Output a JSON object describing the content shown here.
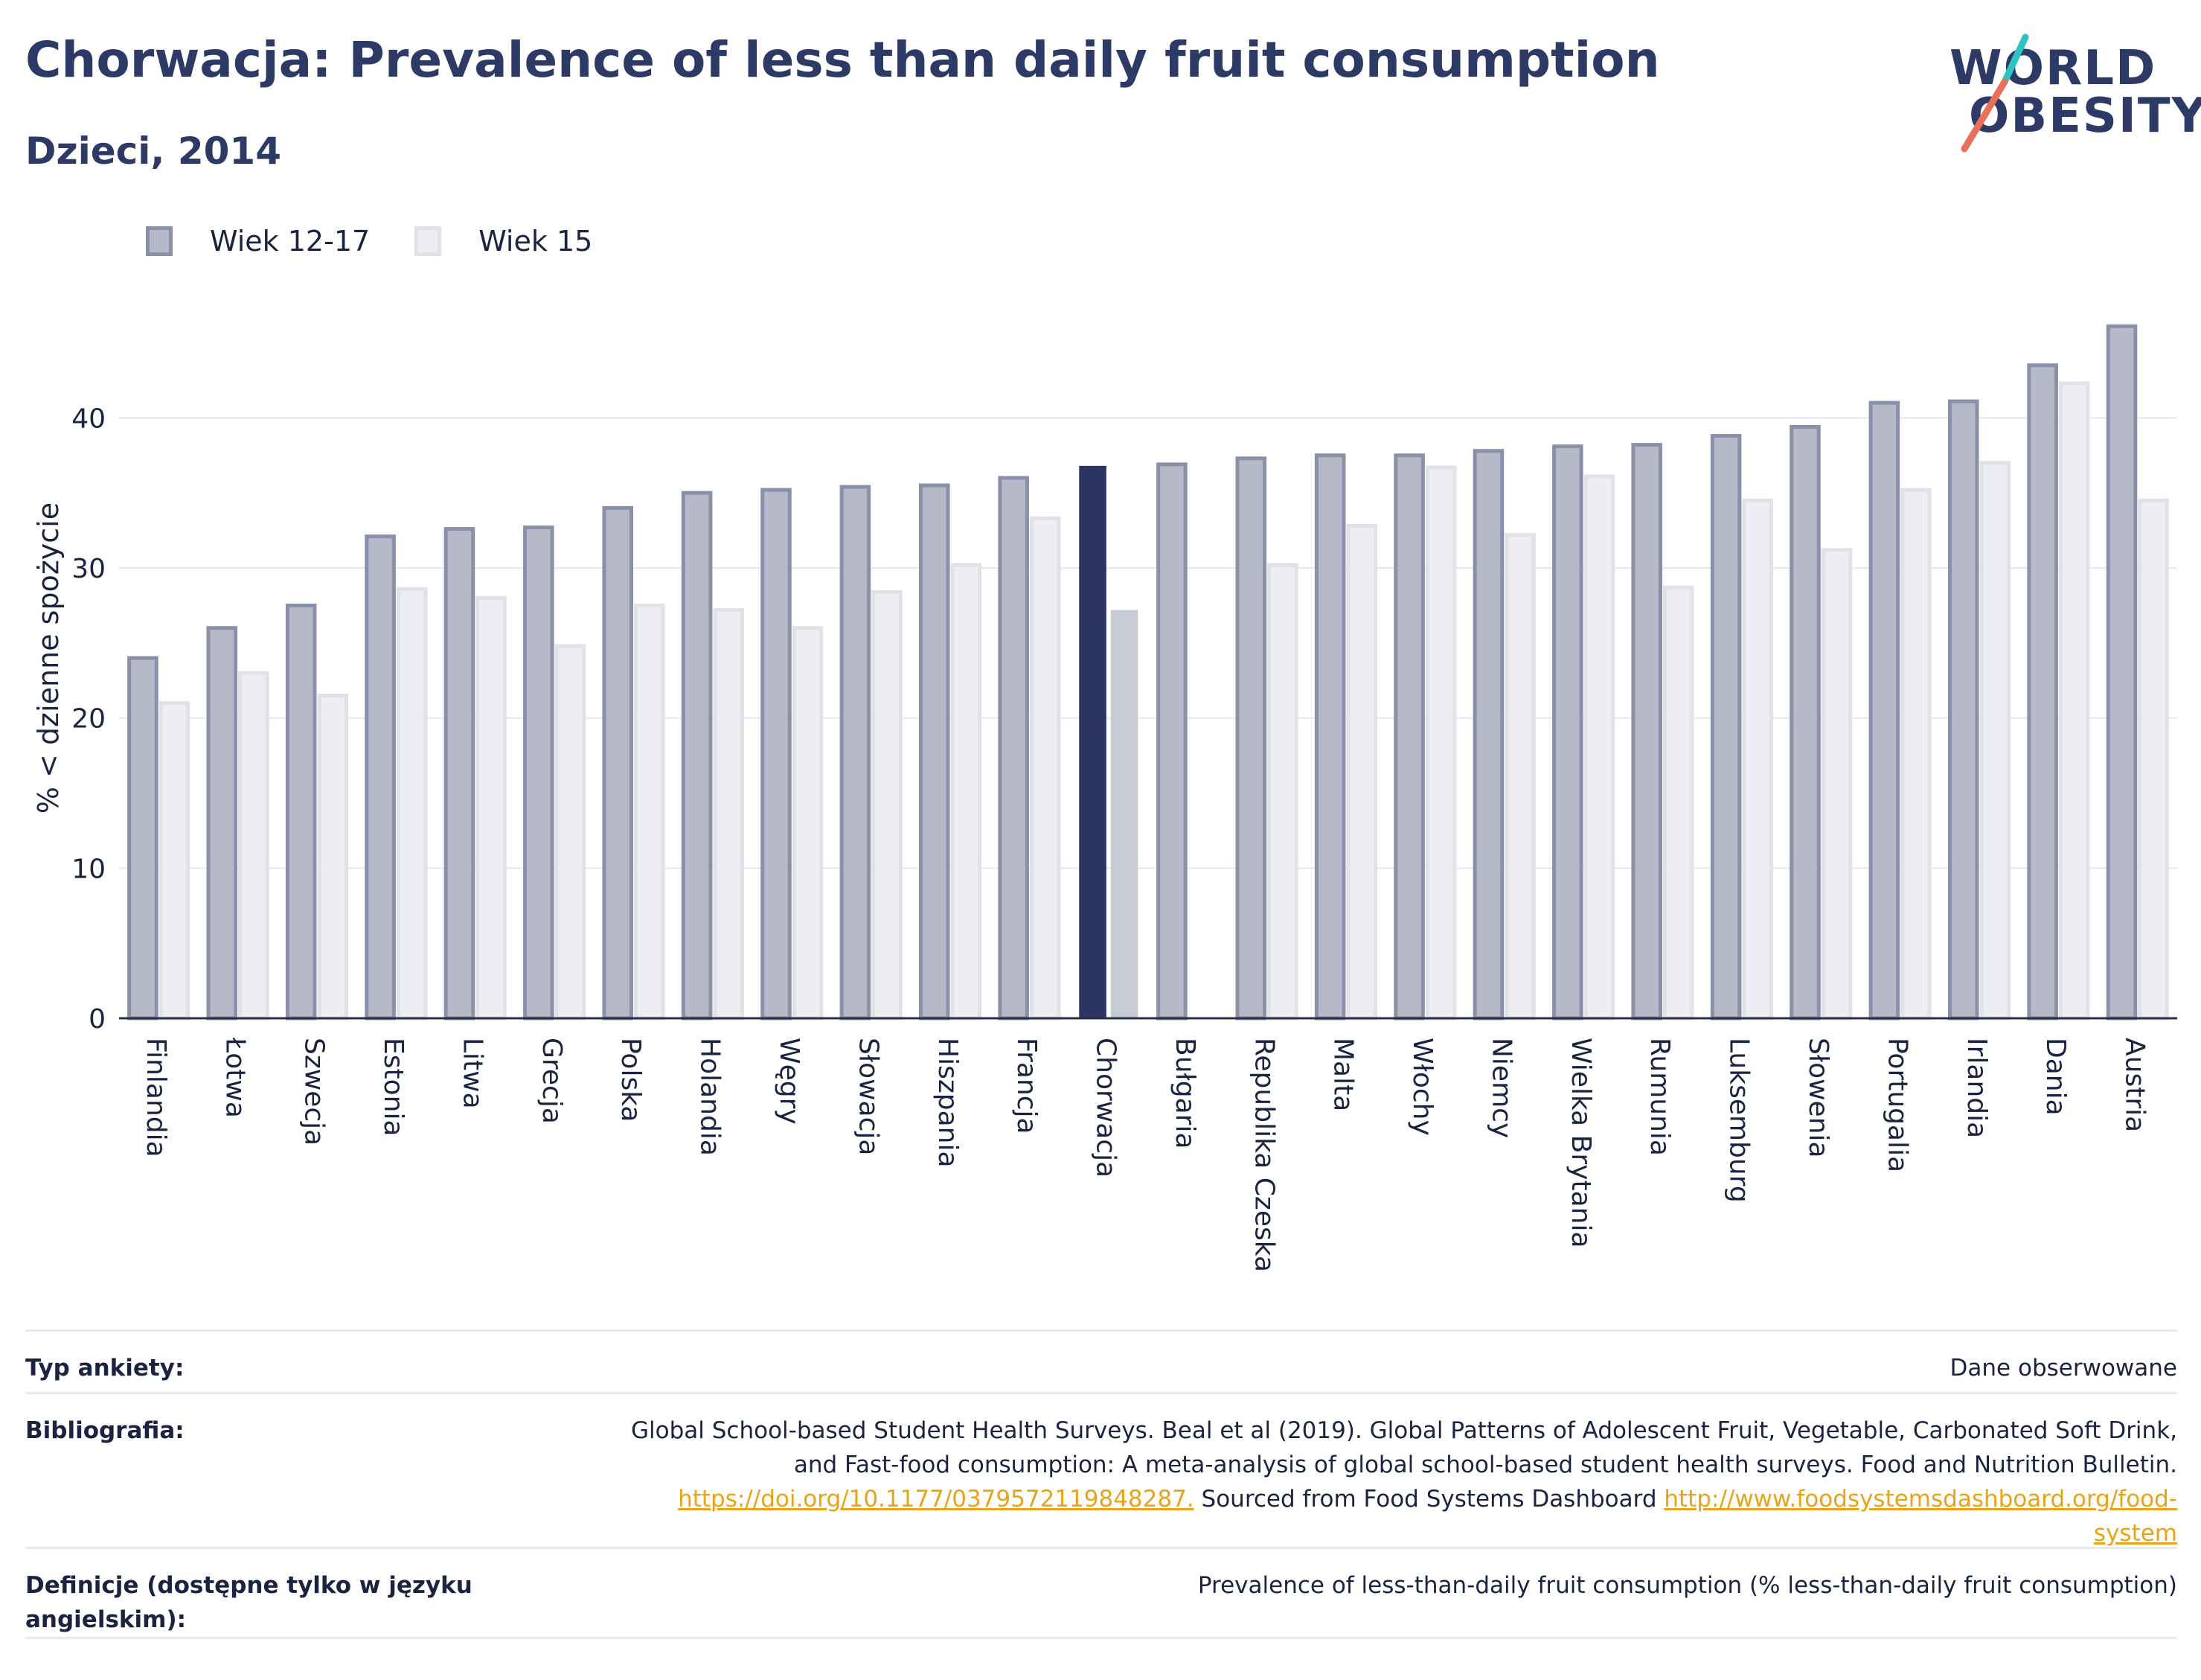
{
  "header": {
    "title": "Chorwacja: Prevalence of less than daily fruit consumption",
    "subtitle": "Dzieci, 2014"
  },
  "logo": {
    "line1": "WORLD",
    "line2": "OBESITY"
  },
  "legend": {
    "series_a": "Wiek 12-17",
    "series_b": "Wiek 15"
  },
  "colors": {
    "series_a_fill": "#b6bac8",
    "series_a_stroke": "#8a90a8",
    "series_b_fill": "#eceef2",
    "series_b_stroke": "#e0e2e8",
    "highlight_a": "#2b3562",
    "highlight_b": "#c8cad6",
    "grid": "#e6e8f0",
    "axis": "#2b3040",
    "logo_teal": "#2ec4c4",
    "logo_coral": "#e8705a"
  },
  "chart_data": {
    "type": "bar",
    "ylabel": "% < dzienne spożycie",
    "ylim": [
      0,
      48
    ],
    "yticks": [
      0,
      10,
      20,
      30,
      40
    ],
    "grid": true,
    "legend_position": "top-left",
    "highlight": "Chorwacja",
    "categories": [
      "Finlandia",
      "Łotwa",
      "Szwecja",
      "Estonia",
      "Litwa",
      "Grecja",
      "Polska",
      "Holandia",
      "Węgry",
      "Słowacja",
      "Hiszpania",
      "Francja",
      "Chorwacja",
      "Bułgaria",
      "Republika Czeska",
      "Malta",
      "Włochy",
      "Niemcy",
      "Wielka Brytania",
      "Rumunia",
      "Luksemburg",
      "Słowenia",
      "Portugalia",
      "Irlandia",
      "Dania",
      "Austria"
    ],
    "series": [
      {
        "name": "Wiek 12-17",
        "values": [
          24.0,
          26.0,
          27.5,
          32.1,
          32.6,
          32.7,
          34.0,
          35.0,
          35.2,
          35.4,
          35.5,
          36.0,
          36.8,
          36.9,
          37.3,
          37.5,
          37.5,
          37.8,
          38.1,
          38.2,
          38.8,
          39.4,
          41.0,
          41.1,
          43.5,
          46.1
        ]
      },
      {
        "name": "Wiek 15",
        "values": [
          21.0,
          23.0,
          21.5,
          28.6,
          28.0,
          24.8,
          27.5,
          27.2,
          26.0,
          28.4,
          30.2,
          33.3,
          27.2,
          0,
          30.2,
          32.8,
          36.7,
          32.2,
          36.1,
          28.7,
          34.5,
          31.2,
          35.2,
          37.0,
          42.3,
          34.5
        ]
      }
    ]
  },
  "info": {
    "survey_type_label": "Typ ankiety:",
    "survey_type_value": "Dane obserwowane",
    "bibliography_label": "Bibliografia:",
    "bibliography_line1": "Global School-based Student Health Surveys. Beal et al (2019). Global Patterns of Adolescent Fruit, Vegetable, Carbonated Soft Drink,",
    "bibliography_line2": "and Fast-food consumption: A meta-analysis of global school-based student health surveys. Food and Nutrition Bulletin.",
    "bibliography_link1": "https://doi.org/10.1177/0379572119848287.",
    "bibliography_mid": " Sourced from Food Systems Dashboard ",
    "bibliography_link2a": "http://www.foodsystemsdashboard.org/food-",
    "bibliography_link2b": "system",
    "definitions_label": "Definicje (dostępne tylko w języku angielskim):",
    "definitions_value": "Prevalence of less-than-daily fruit consumption (% less-than-daily fruit consumption)"
  }
}
